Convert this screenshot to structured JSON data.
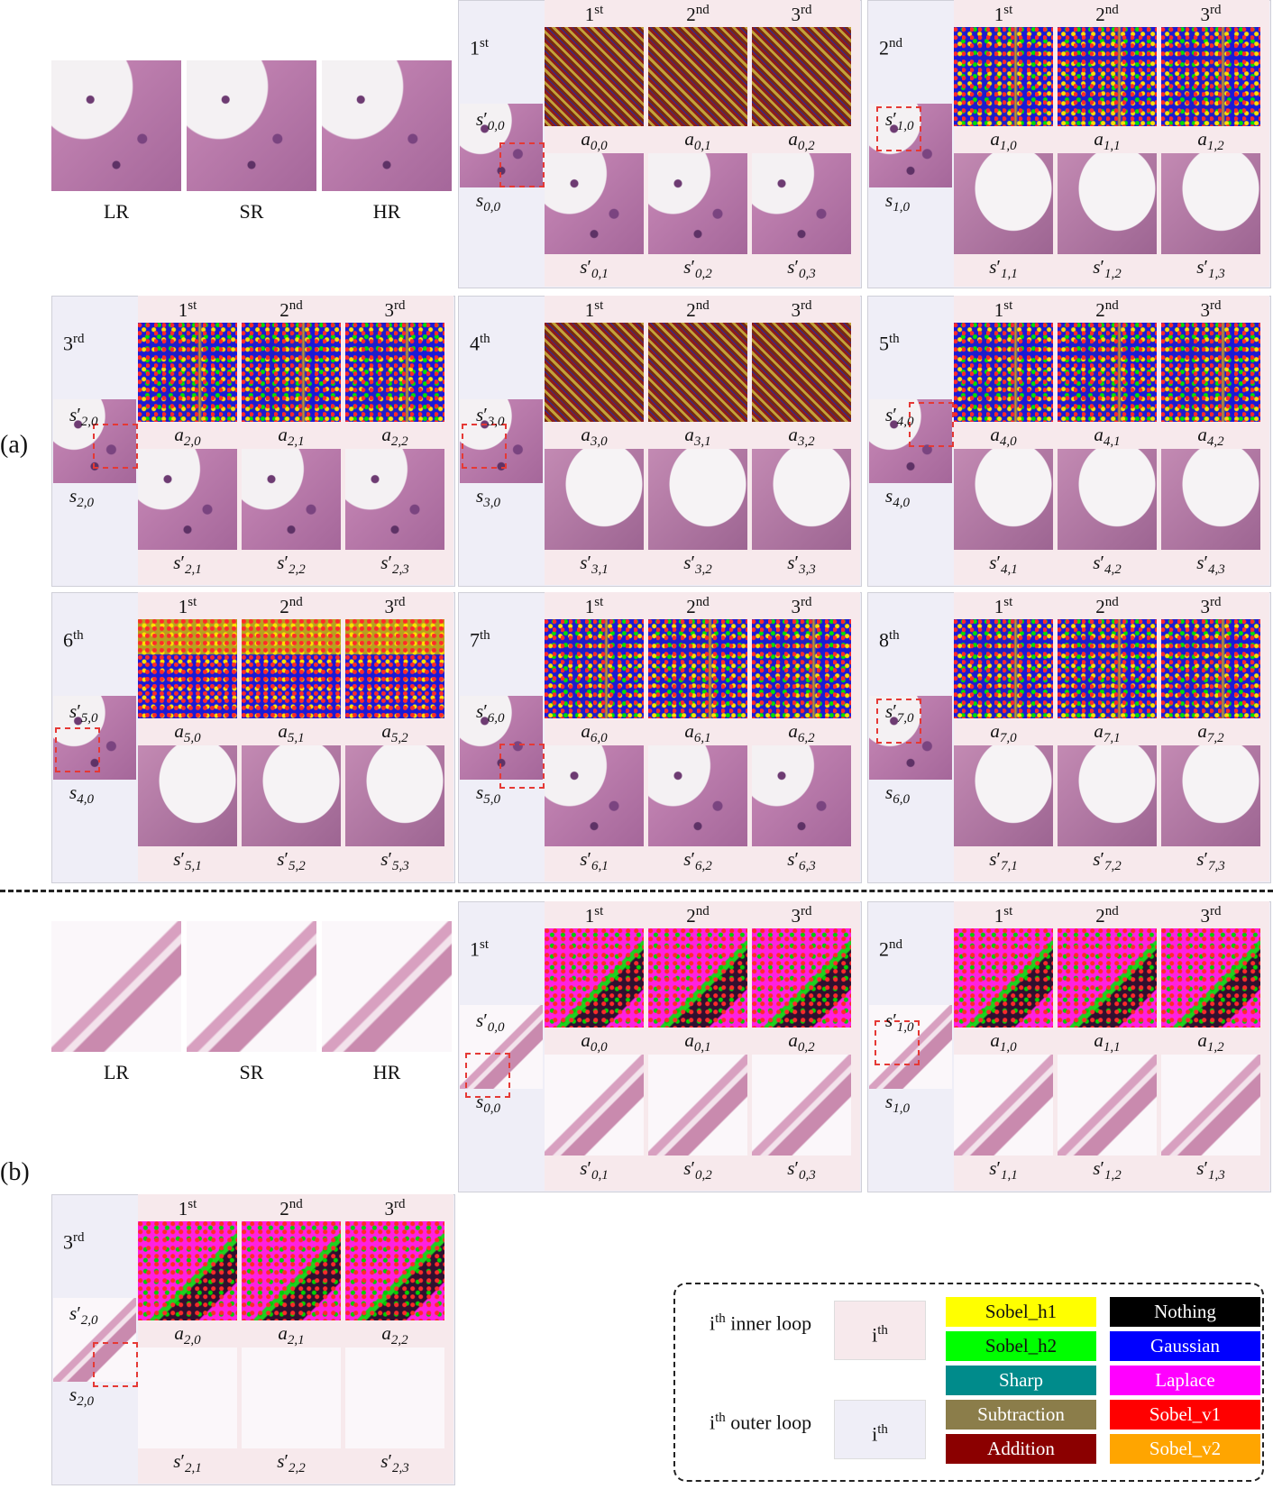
{
  "panel_labels": {
    "a": "(a)",
    "b": "(b)"
  },
  "compare_labels": [
    "LR",
    "SR",
    "HR"
  ],
  "ordinals": [
    "1st",
    "2nd",
    "3rd",
    "4th",
    "5th",
    "6th",
    "7th",
    "8th"
  ],
  "step_labels": [
    "1st",
    "2nd",
    "3rd"
  ],
  "legend": {
    "inner_loop_label": "ith inner loop",
    "outer_loop_label": "ith outer loop",
    "inner_box_label": "ith",
    "outer_box_label": "ith",
    "items": [
      {
        "name": "Sobel_h1",
        "color": "#ffff00"
      },
      {
        "name": "Nothing",
        "color": "#000000"
      },
      {
        "name": "Sobel_h2",
        "color": "#00ff00"
      },
      {
        "name": "Gaussian",
        "color": "#0000ff"
      },
      {
        "name": "Sharp",
        "color": "#008b8b"
      },
      {
        "name": "Laplace",
        "color": "#ff00ff"
      },
      {
        "name": "Subtraction",
        "color": "#8b7d4a"
      },
      {
        "name": "Sobel_v1",
        "color": "#ff0000"
      },
      {
        "name": "Addition",
        "color": "#8b0000"
      },
      {
        "name": "Sobel_v2",
        "color": "#ffa500"
      }
    ]
  }
}
